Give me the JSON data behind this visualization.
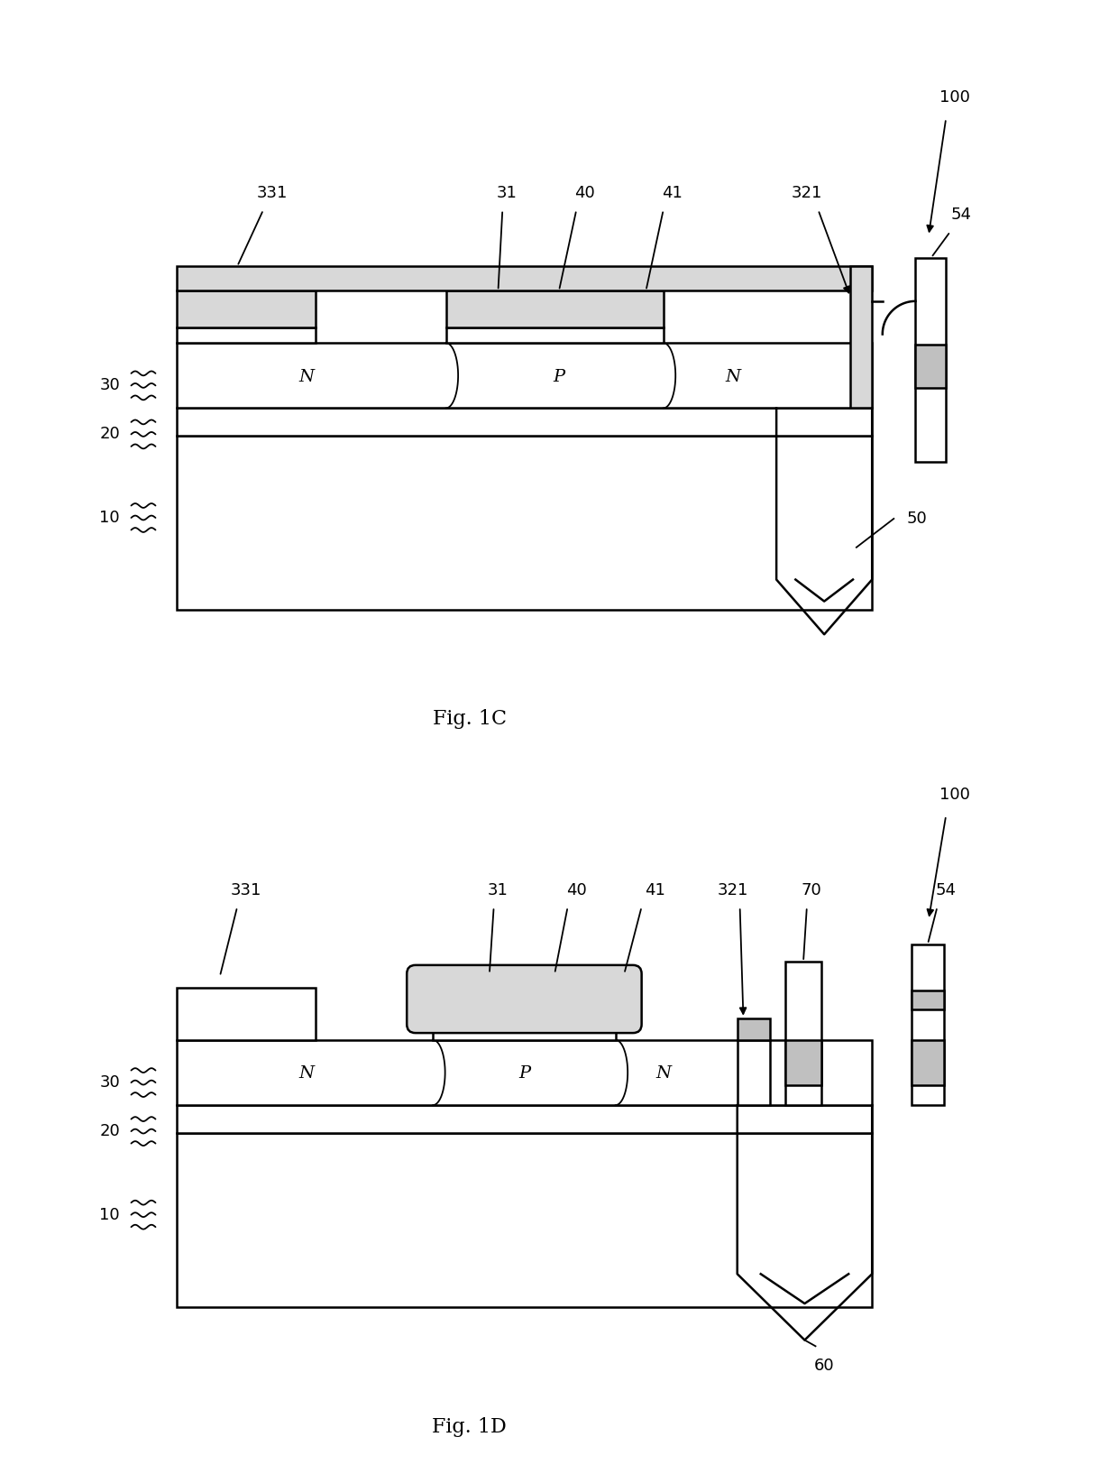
{
  "fig_width": 12.4,
  "fig_height": 16.44,
  "bg_color": "#ffffff",
  "fig1c_label": "Fig. 1C",
  "fig1d_label": "Fig. 1D",
  "label_100": "100",
  "label_331": "331",
  "label_31": "31",
  "label_40": "40",
  "label_41": "41",
  "label_321": "321",
  "label_54": "54",
  "label_30": "30",
  "label_20": "20",
  "label_10": "10",
  "label_50": "50",
  "label_60": "60",
  "label_70": "70",
  "label_N": "N",
  "label_P": "P"
}
